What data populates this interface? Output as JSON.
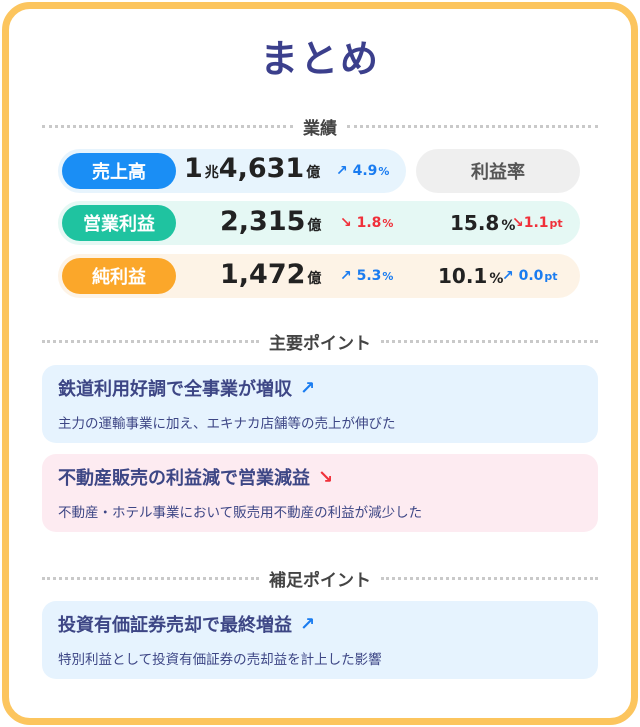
{
  "title": "まとめ",
  "sections": {
    "results": "業績",
    "main_points": "主要ポイント",
    "supplement_points": "補足ポイント"
  },
  "metrics": {
    "margin_header": "利益率",
    "revenue": {
      "label": "売上高",
      "value_cho": "1",
      "unit_cho": "兆",
      "value": "4,631",
      "unit": "億",
      "change": "4.9",
      "change_unit": "%",
      "direction": "up"
    },
    "operating_profit": {
      "label": "営業利益",
      "value": "2,315",
      "unit": "億",
      "change": "1.8",
      "change_unit": "%",
      "direction": "down",
      "margin": "15.8",
      "margin_unit": "%",
      "margin_change": "1.1",
      "margin_change_unit": "pt",
      "margin_direction": "down"
    },
    "net_profit": {
      "label": "純利益",
      "value": "1,472",
      "unit": "億",
      "change": "5.3",
      "change_unit": "%",
      "direction": "up",
      "margin": "10.1",
      "margin_unit": "%",
      "margin_change": "0.0",
      "margin_change_unit": "pt",
      "margin_direction": "up"
    }
  },
  "points": [
    {
      "title": "鉄道利用好調で全事業が増収",
      "desc": "主力の運輸事業に加え、エキナカ店舗等の売上が伸びた",
      "direction": "up"
    },
    {
      "title": "不動産販売の利益減で営業減益",
      "desc": "不動産・ホテル事業において販売用不動産の利益が減少した",
      "direction": "down"
    }
  ],
  "supplements": [
    {
      "title": "投資有価証券売却で最終増益",
      "desc": "特別利益として投資有価証券の売却益を計上した影響",
      "direction": "up"
    }
  ],
  "icons": {
    "up": "arrow-up-right-icon",
    "down": "arrow-down-right-icon"
  },
  "colors": {
    "border": "#fcc55e",
    "title": "#3b3f8c",
    "revenue": "#1a8ef5",
    "operating": "#1fc3a0",
    "net": "#fba72a",
    "up": "#1a7cf0",
    "down": "#f0303a"
  }
}
